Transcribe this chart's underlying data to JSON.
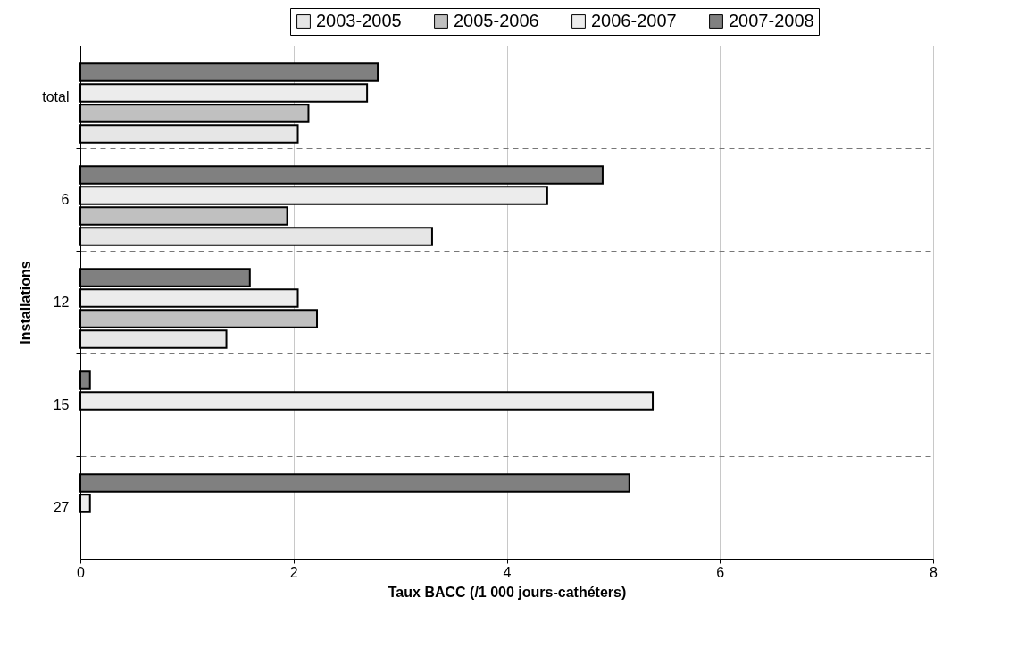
{
  "chart_data": {
    "type": "bar",
    "orientation": "horizontal",
    "xlabel": "Taux BACC (/1 000 jours-cathéters)",
    "ylabel": "Installations",
    "categories": [
      "total",
      "6",
      "12",
      "15",
      "27"
    ],
    "series": [
      {
        "name": "2003-2005",
        "color": "#e6e6e6",
        "values": [
          2.04,
          3.3,
          1.37,
          null,
          null
        ]
      },
      {
        "name": "2005-2006",
        "color": "#c0c0c0",
        "values": [
          2.14,
          1.94,
          2.22,
          null,
          null
        ]
      },
      {
        "name": "2006-2007",
        "color": "#ececec",
        "values": [
          2.69,
          4.38,
          2.04,
          5.37,
          0.09
        ]
      },
      {
        "name": "2007-2008",
        "color": "#808080",
        "values": [
          2.79,
          4.9,
          1.59,
          0.09,
          5.15
        ]
      }
    ],
    "xlim": [
      0,
      8
    ],
    "xticks": [
      0,
      2,
      4,
      6,
      8
    ],
    "grid": true,
    "legend": "top right"
  }
}
